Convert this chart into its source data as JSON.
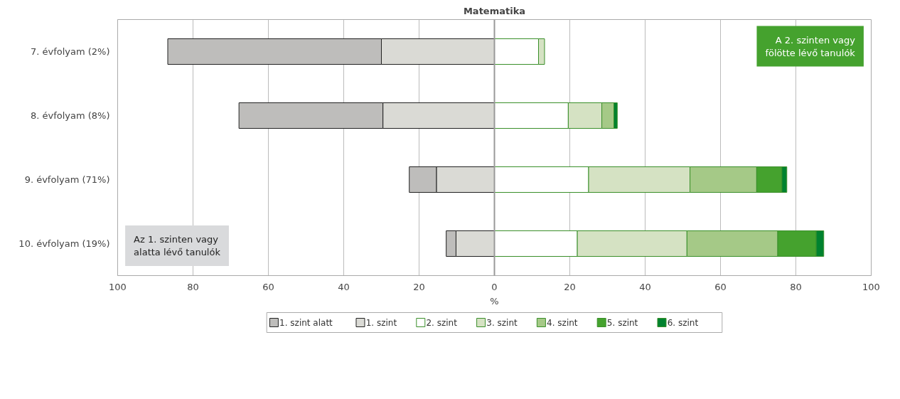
{
  "chart_data": {
    "type": "bar",
    "orientation": "horizontal",
    "stacked": true,
    "title": "Matematika",
    "xlabel": "%",
    "categories": [
      "7. évfolyam (2%)",
      "8. évfolyam (8%)",
      "9. évfolyam (71%)",
      "10. évfolyam (19%)"
    ],
    "series": [
      {
        "name": "1. szint",
        "color": "#dadad5",
        "values": [
          -30.0,
          -29.6,
          -15.4,
          -10.2
        ]
      },
      {
        "name": "1. szint alatt",
        "color": "#bebdbb",
        "values": [
          -56.7,
          -38.2,
          -7.2,
          -2.6
        ]
      },
      {
        "name": "2. szint",
        "color": "#ffffff",
        "values": [
          11.7,
          19.6,
          25.0,
          22.0
        ]
      },
      {
        "name": "3. szint",
        "color": "#d5e2c3",
        "values": [
          1.6,
          8.9,
          26.9,
          29.1
        ]
      },
      {
        "name": "4. szint",
        "color": "#a5c987",
        "values": [
          0,
          3.2,
          17.7,
          24.1
        ]
      },
      {
        "name": "5. szint",
        "color": "#45a22e",
        "values": [
          0,
          0,
          6.7,
          10.2
        ]
      },
      {
        "name": "6. szint",
        "color": "#00822f",
        "values": [
          0,
          0.9,
          1.3,
          2.0
        ]
      }
    ],
    "xlim": [
      -100,
      100
    ],
    "xticks": [
      {
        "value": -100,
        "label": "100"
      },
      {
        "value": -80,
        "label": "80"
      },
      {
        "value": -60,
        "label": "60"
      },
      {
        "value": -40,
        "label": "40"
      },
      {
        "value": -20,
        "label": "20"
      },
      0,
      20,
      40,
      60,
      80,
      100
    ],
    "grid": "x",
    "legend": "bottom",
    "annotations": [
      "A 2. szinten vagy fölötte lévő tanulók",
      "Az 1. szinten vagy alatta lévő tanulók"
    ]
  }
}
